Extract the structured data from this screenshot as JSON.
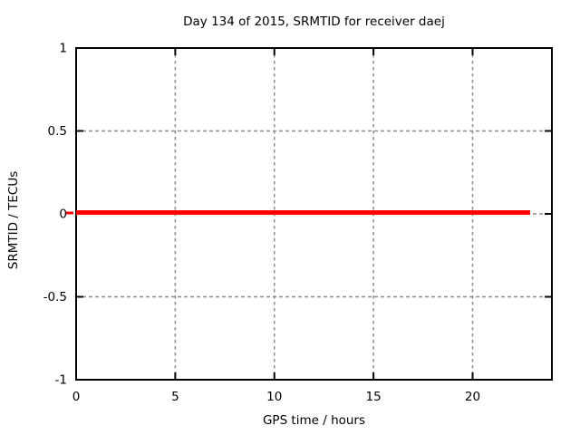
{
  "chart_data": {
    "type": "line",
    "title": "Day 134 of 2015, SRMTID for receiver daej",
    "xlabel": "GPS time / hours",
    "ylabel": "SRMTID / TECUs",
    "xlim": [
      0,
      24
    ],
    "ylim": [
      -1,
      1
    ],
    "xticks": [
      0,
      5,
      10,
      15,
      20
    ],
    "yticks": [
      -1,
      -0.5,
      0,
      0.5,
      1
    ],
    "xtick_labels": [
      "0",
      "5",
      "10",
      "15",
      "20"
    ],
    "ytick_labels": [
      "-1",
      "-0.5",
      "0",
      "0.5",
      "1"
    ],
    "grid": true,
    "legend": "none",
    "series": [
      {
        "name": "SRMTID",
        "color": "#ff0000",
        "line_width": 5,
        "x": [
          0,
          22.9
        ],
        "y": [
          0,
          0
        ]
      }
    ],
    "colors": {
      "background": "#ffffff",
      "border": "#000000",
      "grid": "#8c8c8c",
      "text": "#000000"
    }
  }
}
